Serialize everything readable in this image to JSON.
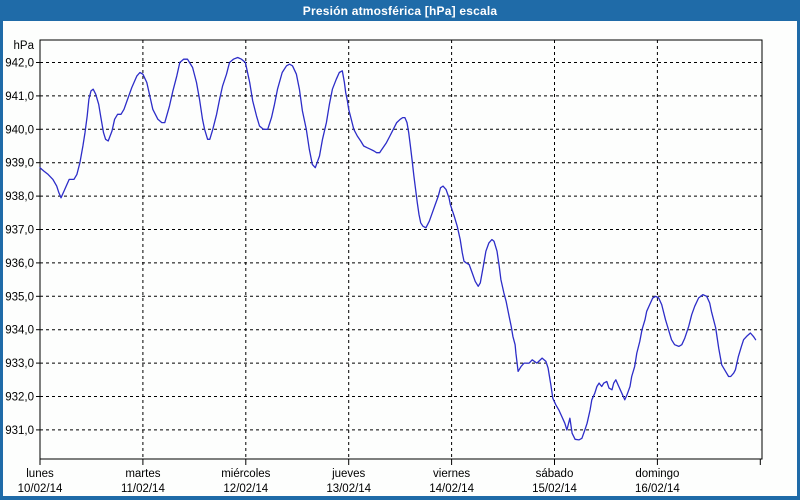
{
  "window": {
    "title": "Presión atmosférica [hPa] escala",
    "title_bar_color": "#1f6ba8",
    "frame_color": "#1f6ba8",
    "background": "#fdfefd"
  },
  "chart_data": {
    "type": "line",
    "title": "Presión atmosférica [hPa] escala",
    "ylabel": "hPa",
    "unit": "hPa",
    "ylim": [
      930.1,
      942.7
    ],
    "yticks": [
      942,
      941,
      940,
      939,
      938,
      937,
      936,
      935,
      934,
      933,
      932,
      931
    ],
    "ytick_labels": [
      "942,0",
      "941,0",
      "940,0",
      "939,0",
      "938,0",
      "937,0",
      "936,0",
      "935,0",
      "934,0",
      "933,0",
      "932,0",
      "931,0"
    ],
    "grid": "dashed black horizontal per hPa and vertical per day",
    "legend": "none",
    "line_color": "#2d2dc8",
    "grid_color": "#000000",
    "text_color": "#000000",
    "x_axis": {
      "span_days": 7,
      "days": [
        {
          "name": "lunes",
          "date": "10/02/14"
        },
        {
          "name": "martes",
          "date": "11/02/14"
        },
        {
          "name": "miércoles",
          "date": "12/02/14"
        },
        {
          "name": "jueves",
          "date": "13/02/14"
        },
        {
          "name": "viernes",
          "date": "14/02/14"
        },
        {
          "name": "sábado",
          "date": "15/02/14"
        },
        {
          "name": "domingo",
          "date": "16/02/14"
        }
      ]
    },
    "series": [
      {
        "name": "Presión atmosférica",
        "x_unit": "hours since lunes 10/02/14 00:00",
        "points": [
          [
            0,
            938.85
          ],
          [
            0.9,
            938.75
          ],
          [
            1.9,
            938.65
          ],
          [
            3,
            938.5
          ],
          [
            3.9,
            938.3
          ],
          [
            4.4,
            938.1
          ],
          [
            4.9,
            937.95
          ],
          [
            5.6,
            938.15
          ],
          [
            6.1,
            938.3
          ],
          [
            6.8,
            938.5
          ],
          [
            7.9,
            938.5
          ],
          [
            8.6,
            938.65
          ],
          [
            9.3,
            939.0
          ],
          [
            10,
            939.5
          ],
          [
            10.5,
            939.9
          ],
          [
            11,
            940.4
          ],
          [
            11.4,
            940.9
          ],
          [
            11.9,
            941.15
          ],
          [
            12.4,
            941.2
          ],
          [
            13,
            941.05
          ],
          [
            13.7,
            940.75
          ],
          [
            14.2,
            940.35
          ],
          [
            14.8,
            939.9
          ],
          [
            15.3,
            939.7
          ],
          [
            15.9,
            939.65
          ],
          [
            16.8,
            939.95
          ],
          [
            17.4,
            940.3
          ],
          [
            18.1,
            940.45
          ],
          [
            18.9,
            940.45
          ],
          [
            19.6,
            940.6
          ],
          [
            20.3,
            940.85
          ],
          [
            21.4,
            941.25
          ],
          [
            22.6,
            941.6
          ],
          [
            23.3,
            941.7
          ],
          [
            24,
            941.65
          ],
          [
            24.9,
            941.4
          ],
          [
            25.6,
            941.0
          ],
          [
            26.3,
            940.6
          ],
          [
            27.5,
            940.3
          ],
          [
            28.4,
            940.2
          ],
          [
            29.1,
            940.2
          ],
          [
            30.2,
            940.7
          ],
          [
            31,
            941.15
          ],
          [
            31.9,
            941.6
          ],
          [
            32.6,
            942.0
          ],
          [
            33.5,
            942.1
          ],
          [
            34.4,
            942.1
          ],
          [
            35.6,
            941.85
          ],
          [
            36.5,
            941.4
          ],
          [
            37.2,
            940.9
          ],
          [
            37.9,
            940.3
          ],
          [
            38.4,
            940.0
          ],
          [
            39.1,
            939.7
          ],
          [
            39.6,
            939.7
          ],
          [
            40.3,
            940.0
          ],
          [
            41.2,
            940.45
          ],
          [
            41.9,
            940.9
          ],
          [
            42.6,
            941.3
          ],
          [
            43.5,
            941.65
          ],
          [
            44.2,
            942.0
          ],
          [
            45.1,
            942.1
          ],
          [
            46.1,
            942.15
          ],
          [
            47,
            942.1
          ],
          [
            47.9,
            942.0
          ],
          [
            48.9,
            941.4
          ],
          [
            49.6,
            940.85
          ],
          [
            50.5,
            940.4
          ],
          [
            51.2,
            940.1
          ],
          [
            52.1,
            940.0
          ],
          [
            53.1,
            940.0
          ],
          [
            54,
            940.35
          ],
          [
            54.7,
            940.75
          ],
          [
            55.4,
            941.2
          ],
          [
            56.5,
            941.7
          ],
          [
            57.5,
            941.9
          ],
          [
            58.2,
            941.95
          ],
          [
            58.9,
            941.9
          ],
          [
            59.8,
            941.65
          ],
          [
            60.5,
            941.2
          ],
          [
            61.2,
            940.55
          ],
          [
            62.1,
            940.0
          ],
          [
            62.8,
            939.4
          ],
          [
            63.5,
            938.95
          ],
          [
            64.2,
            938.85
          ],
          [
            65.2,
            939.2
          ],
          [
            65.9,
            939.7
          ],
          [
            66.8,
            940.2
          ],
          [
            67.5,
            940.75
          ],
          [
            68.2,
            941.2
          ],
          [
            69.1,
            941.5
          ],
          [
            69.8,
            941.7
          ],
          [
            70.5,
            941.75
          ],
          [
            71,
            941.4
          ],
          [
            71.3,
            941.1
          ],
          [
            71.7,
            940.85
          ],
          [
            72,
            940.6
          ],
          [
            72.4,
            940.4
          ],
          [
            72.8,
            940.2
          ],
          [
            73.2,
            940.0
          ],
          [
            74,
            939.8
          ],
          [
            74.8,
            939.65
          ],
          [
            75.5,
            939.5
          ],
          [
            76.3,
            939.45
          ],
          [
            77.1,
            939.4
          ],
          [
            77.9,
            939.35
          ],
          [
            78.5,
            939.3
          ],
          [
            79.2,
            939.3
          ],
          [
            80,
            939.45
          ],
          [
            80.8,
            939.6
          ],
          [
            81.6,
            939.8
          ],
          [
            82.4,
            940.0
          ],
          [
            83.2,
            940.2
          ],
          [
            84,
            940.3
          ],
          [
            84.6,
            940.35
          ],
          [
            85.1,
            940.35
          ],
          [
            85.6,
            940.2
          ],
          [
            86,
            939.9
          ],
          [
            86.4,
            939.5
          ],
          [
            86.8,
            939.05
          ],
          [
            87.2,
            938.6
          ],
          [
            87.6,
            938.2
          ],
          [
            88,
            937.8
          ],
          [
            88.4,
            937.45
          ],
          [
            88.8,
            937.2
          ],
          [
            89.3,
            937.1
          ],
          [
            90,
            937.05
          ],
          [
            90.8,
            937.25
          ],
          [
            91.5,
            937.5
          ],
          [
            92.2,
            937.75
          ],
          [
            92.9,
            938.0
          ],
          [
            93.4,
            938.25
          ],
          [
            94,
            938.3
          ],
          [
            94.7,
            938.2
          ],
          [
            95.4,
            937.95
          ],
          [
            95.7,
            937.75
          ],
          [
            96.6,
            937.4
          ],
          [
            97.3,
            937.1
          ],
          [
            98,
            936.7
          ],
          [
            98.5,
            936.3
          ],
          [
            98.9,
            936.05
          ],
          [
            99.4,
            936.0
          ],
          [
            100.1,
            935.95
          ],
          [
            100.8,
            935.7
          ],
          [
            101.5,
            935.45
          ],
          [
            102.2,
            935.3
          ],
          [
            102.7,
            935.4
          ],
          [
            103.4,
            935.9
          ],
          [
            104,
            936.35
          ],
          [
            104.7,
            936.6
          ],
          [
            105.4,
            936.7
          ],
          [
            105.9,
            936.65
          ],
          [
            106.6,
            936.35
          ],
          [
            107.1,
            935.9
          ],
          [
            107.5,
            935.5
          ],
          [
            108.2,
            935.1
          ],
          [
            108.7,
            934.85
          ],
          [
            109.4,
            934.4
          ],
          [
            109.9,
            934.1
          ],
          [
            110.3,
            933.8
          ],
          [
            110.8,
            933.55
          ],
          [
            111,
            933.3
          ],
          [
            111.5,
            932.75
          ],
          [
            112.2,
            932.9
          ],
          [
            112.9,
            933.0
          ],
          [
            114.1,
            933.0
          ],
          [
            114.8,
            933.1
          ],
          [
            115.9,
            933.0
          ],
          [
            117.1,
            933.15
          ],
          [
            118,
            933.05
          ],
          [
            118.5,
            932.85
          ],
          [
            119.2,
            932.3
          ],
          [
            119.6,
            931.95
          ],
          [
            120.3,
            931.75
          ],
          [
            121,
            931.6
          ],
          [
            121.7,
            931.4
          ],
          [
            122.4,
            931.2
          ],
          [
            122.9,
            931.0
          ],
          [
            123.6,
            931.35
          ],
          [
            124.1,
            930.9
          ],
          [
            124.8,
            930.72
          ],
          [
            125.7,
            930.7
          ],
          [
            126.4,
            930.75
          ],
          [
            127.1,
            931.0
          ],
          [
            127.6,
            931.2
          ],
          [
            128.3,
            931.6
          ],
          [
            128.7,
            931.9
          ],
          [
            129.4,
            932.1
          ],
          [
            129.9,
            932.3
          ],
          [
            130.4,
            932.4
          ],
          [
            131,
            932.3
          ],
          [
            131.5,
            932.4
          ],
          [
            132.2,
            932.45
          ],
          [
            132.7,
            932.25
          ],
          [
            133.4,
            932.2
          ],
          [
            133.8,
            932.4
          ],
          [
            134.3,
            932.5
          ],
          [
            135,
            932.3
          ],
          [
            135.7,
            932.1
          ],
          [
            136.4,
            931.9
          ],
          [
            136.9,
            932.05
          ],
          [
            137.6,
            932.3
          ],
          [
            138,
            932.6
          ],
          [
            138.7,
            932.9
          ],
          [
            139.2,
            933.3
          ],
          [
            139.9,
            933.65
          ],
          [
            140.4,
            934.0
          ],
          [
            141.1,
            934.3
          ],
          [
            141.5,
            934.55
          ],
          [
            142.2,
            934.75
          ],
          [
            142.9,
            934.95
          ],
          [
            143.6,
            935.0
          ],
          [
            144.3,
            934.95
          ],
          [
            145,
            934.75
          ],
          [
            145.9,
            934.3
          ],
          [
            146.6,
            934.0
          ],
          [
            147.3,
            933.7
          ],
          [
            148,
            933.55
          ],
          [
            149,
            933.5
          ],
          [
            149.7,
            933.55
          ],
          [
            150.4,
            933.75
          ],
          [
            151.3,
            934.1
          ],
          [
            152,
            934.45
          ],
          [
            152.7,
            934.7
          ],
          [
            153.6,
            934.95
          ],
          [
            154.6,
            935.05
          ],
          [
            155.5,
            935.0
          ],
          [
            156.2,
            934.8
          ],
          [
            156.6,
            934.55
          ],
          [
            157.6,
            934.05
          ],
          [
            158.3,
            933.45
          ],
          [
            159,
            932.95
          ],
          [
            159.9,
            932.75
          ],
          [
            160.6,
            932.6
          ],
          [
            161.1,
            932.6
          ],
          [
            161.8,
            932.7
          ],
          [
            162.2,
            932.8
          ],
          [
            162.9,
            933.2
          ],
          [
            163.6,
            933.5
          ],
          [
            164.1,
            933.7
          ],
          [
            164.8,
            933.8
          ],
          [
            165.7,
            933.9
          ],
          [
            166.4,
            933.8
          ],
          [
            166.9,
            933.7
          ]
        ]
      }
    ]
  }
}
